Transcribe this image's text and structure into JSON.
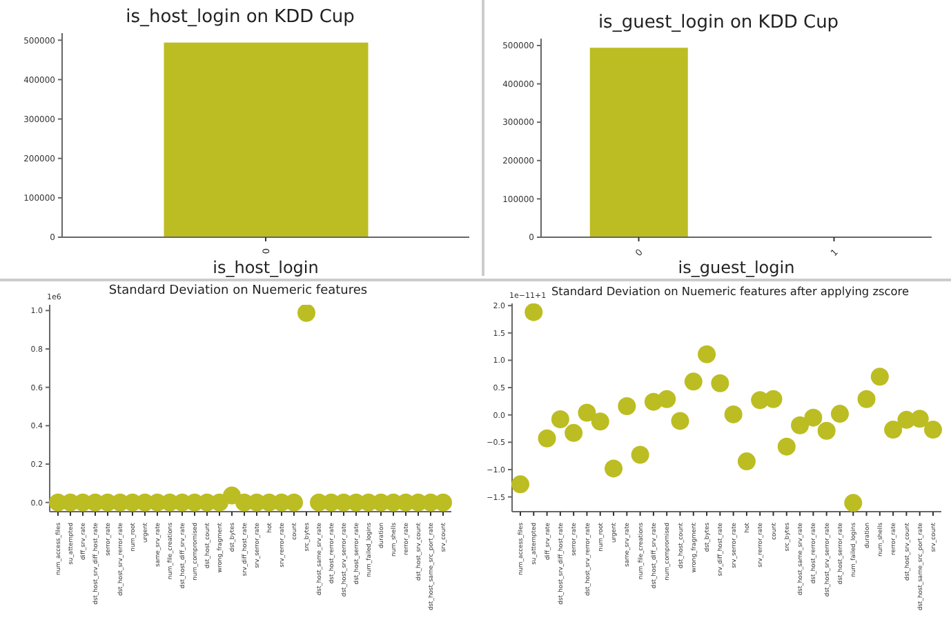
{
  "chart_data": [
    {
      "type": "bar",
      "title": "is_host_login on KDD Cup",
      "xlabel": "is_host_login",
      "categories": [
        "0"
      ],
      "values": [
        494000
      ],
      "color": "#bcbd22",
      "ylim": [
        0,
        518000
      ],
      "yticks": [
        0,
        100000,
        200000,
        300000,
        400000,
        500000
      ]
    },
    {
      "type": "bar",
      "title": "is_guest_login on KDD Cup",
      "xlabel": "is_guest_login",
      "categories": [
        "0",
        "1"
      ],
      "values": [
        494000,
        0
      ],
      "color": "#bcbd22",
      "ylim": [
        0,
        518000
      ],
      "yticks": [
        0,
        100000,
        200000,
        300000,
        400000,
        500000
      ]
    },
    {
      "type": "scatter",
      "title": "Standard Deviation on Nuemeric features",
      "annotations": [
        "1e6"
      ],
      "marker": "circle",
      "color": "#bcbd22",
      "categories": [
        "num_access_files",
        "su_attempted",
        "diff_srv_rate",
        "dst_host_srv_diff_host_rate",
        "serror_rate",
        "dst_host_srv_rerror_rate",
        "num_root",
        "urgent",
        "same_srv_rate",
        "num_file_creations",
        "dst_host_diff_srv_rate",
        "num_compromised",
        "dst_host_count",
        "wrong_fragment",
        "dst_bytes",
        "srv_diff_host_rate",
        "srv_serror_rate",
        "hot",
        "srv_rerror_rate",
        "count",
        "src_bytes",
        "dst_host_same_srv_rate",
        "dst_host_rerror_rate",
        "dst_host_srv_serror_rate",
        "dst_host_serror_rate",
        "num_failed_logins",
        "duration",
        "num_shells",
        "rerror_rate",
        "dst_host_srv_count",
        "dst_host_same_src_port_rate",
        "srv_count"
      ],
      "values": [
        0,
        0,
        0,
        0,
        0,
        0,
        0,
        0,
        0,
        0,
        0,
        0,
        0,
        0,
        0.036,
        0,
        0,
        0,
        0,
        0,
        0.988,
        0,
        0,
        0,
        0,
        0,
        0,
        0,
        0,
        0,
        0,
        0
      ],
      "ylim": [
        -0.048,
        1.03
      ],
      "yticks": [
        {
          "value": 0,
          "label": "0.0"
        },
        {
          "value": 0.2,
          "label": "0.2"
        },
        {
          "value": 0.4,
          "label": "0.4"
        },
        {
          "value": 0.6,
          "label": "0.6"
        },
        {
          "value": 0.8,
          "label": "0.8"
        },
        {
          "value": 1,
          "label": "1.0"
        }
      ]
    },
    {
      "type": "scatter",
      "title": "Standard Deviation on Nuemeric features after applying zscore",
      "annotations": [
        "1e−11+1"
      ],
      "marker": "circle",
      "color": "#bcbd22",
      "categories": [
        "num_access_files",
        "su_attempted",
        "diff_srv_rate",
        "dst_host_srv_diff_host_rate",
        "serror_rate",
        "dst_host_srv_rerror_rate",
        "num_root",
        "urgent",
        "same_srv_rate",
        "num_file_creations",
        "dst_host_diff_srv_rate",
        "num_compromised",
        "dst_host_count",
        "wrong_fragment",
        "dst_bytes",
        "srv_diff_host_rate",
        "srv_serror_rate",
        "hot",
        "srv_rerror_rate",
        "count",
        "src_bytes",
        "dst_host_same_srv_rate",
        "dst_host_rerror_rate",
        "dst_host_srv_serror_rate",
        "dst_host_serror_rate",
        "num_failed_logins",
        "duration",
        "num_shells",
        "rerror_rate",
        "dst_host_srv_count",
        "dst_host_same_src_port_rate",
        "srv_count"
      ],
      "values": [
        -1.27,
        1.88,
        -0.43,
        -0.08,
        -0.33,
        0.04,
        -0.12,
        -0.98,
        0.16,
        -0.73,
        0.24,
        0.29,
        -0.11,
        0.61,
        1.11,
        0.58,
        0.01,
        -0.85,
        0.27,
        0.29,
        -0.58,
        -0.19,
        -0.05,
        -0.29,
        0.02,
        -1.61,
        0.29,
        0.7,
        -0.27,
        -0.09,
        -0.07,
        -0.27
      ],
      "ylim": [
        -1.77,
        2.04
      ],
      "yticks": [
        {
          "value": -1.5,
          "label": "−1.5"
        },
        {
          "value": -1,
          "label": "−1.0"
        },
        {
          "value": -0.5,
          "label": "−0.5"
        },
        {
          "value": 0,
          "label": "0.0"
        },
        {
          "value": 0.5,
          "label": "0.5"
        },
        {
          "value": 1,
          "label": "1.0"
        },
        {
          "value": 1.5,
          "label": "1.5"
        },
        {
          "value": 2,
          "label": "2.0"
        }
      ]
    }
  ]
}
